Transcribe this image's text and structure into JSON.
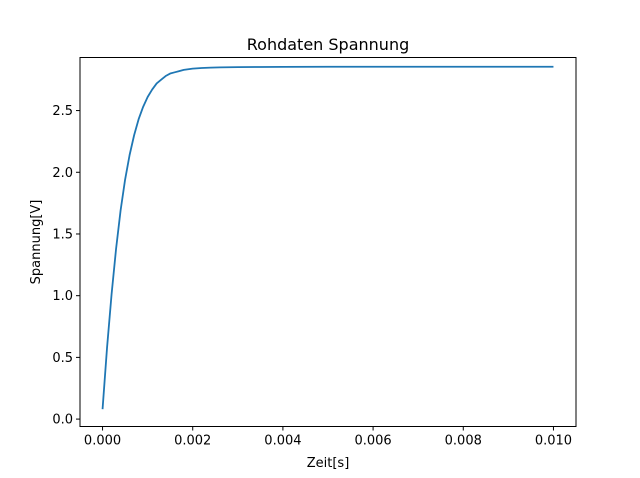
{
  "chart_data": {
    "type": "line",
    "title": "Rohdaten Spannung",
    "xlabel": "Zeit[s]",
    "ylabel": "Spannung[V]",
    "xlim": [
      -0.0005,
      0.0105
    ],
    "ylim": [
      -0.06,
      2.93
    ],
    "xticks": [
      0.0,
      0.002,
      0.004,
      0.006,
      0.008,
      0.01
    ],
    "xtick_labels": [
      "0.000",
      "0.002",
      "0.004",
      "0.006",
      "0.008",
      "0.010"
    ],
    "yticks": [
      0.0,
      0.5,
      1.0,
      1.5,
      2.0,
      2.5
    ],
    "ytick_labels": [
      "0.0",
      "0.5",
      "1.0",
      "1.5",
      "2.0",
      "2.5"
    ],
    "grid": false,
    "line_color": "#1f77b4",
    "series": [
      {
        "x": [
          0.0,
          0.0001,
          0.0002,
          0.0003,
          0.0004,
          0.0005,
          0.0006,
          0.0007,
          0.0008,
          0.0009,
          0.001,
          0.0011,
          0.0012,
          0.0013,
          0.0014,
          0.0015,
          0.0016,
          0.0017,
          0.0018,
          0.0019,
          0.002,
          0.0022,
          0.0024,
          0.0026,
          0.0028,
          0.003,
          0.0035,
          0.004,
          0.005,
          0.006,
          0.007,
          0.008,
          0.009,
          0.01
        ],
        "y": [
          0.08,
          0.58,
          1.01,
          1.38,
          1.69,
          1.94,
          2.14,
          2.3,
          2.43,
          2.53,
          2.61,
          2.67,
          2.72,
          2.75,
          2.78,
          2.8,
          2.81,
          2.82,
          2.83,
          2.835,
          2.84,
          2.845,
          2.848,
          2.85,
          2.851,
          2.852,
          2.853,
          2.854,
          2.855,
          2.855,
          2.855,
          2.855,
          2.855,
          2.855
        ]
      }
    ]
  }
}
